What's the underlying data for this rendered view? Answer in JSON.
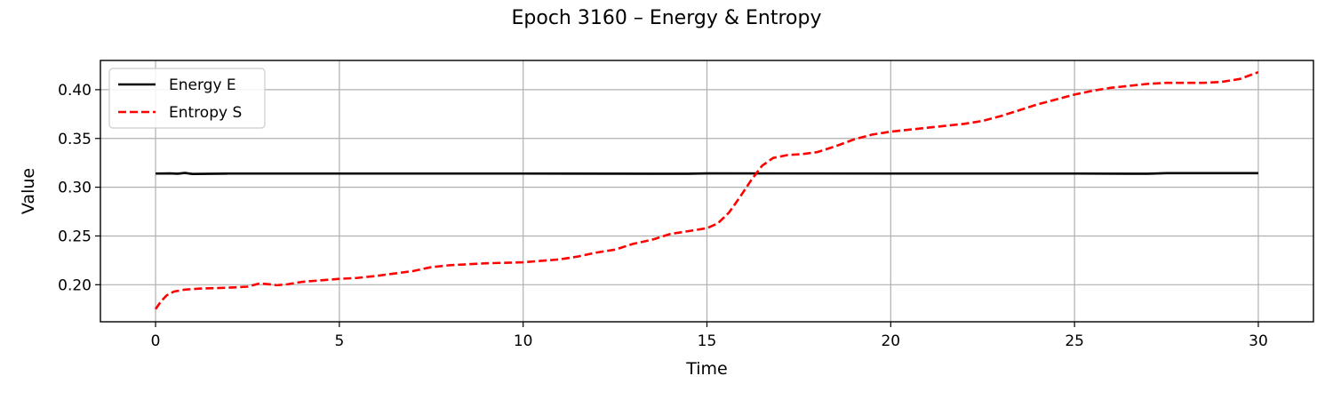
{
  "chart_data": {
    "type": "line",
    "title": "Epoch 3160 – Energy & Entropy",
    "xlabel": "Time",
    "ylabel": "Value",
    "xlim": [
      -1.5,
      31.5
    ],
    "ylim": [
      0.162,
      0.43
    ],
    "xticks": [
      0,
      5,
      10,
      15,
      20,
      25,
      30
    ],
    "yticks": [
      0.2,
      0.25,
      0.3,
      0.35,
      0.4
    ],
    "xtick_labels": [
      "0",
      "5",
      "10",
      "15",
      "20",
      "25",
      "30"
    ],
    "ytick_labels": [
      "0.20",
      "0.25",
      "0.30",
      "0.35",
      "0.40"
    ],
    "grid": true,
    "legend_position": "upper-left",
    "series": [
      {
        "name": "Energy E",
        "color": "#000000",
        "style": "solid",
        "points": [
          [
            0,
            0.314
          ],
          [
            0.4,
            0.3142
          ],
          [
            0.6,
            0.3138
          ],
          [
            0.8,
            0.3146
          ],
          [
            1.0,
            0.3136
          ],
          [
            2,
            0.314
          ],
          [
            5,
            0.314
          ],
          [
            10,
            0.314
          ],
          [
            13.5,
            0.3138
          ],
          [
            14.5,
            0.3138
          ],
          [
            15,
            0.3142
          ],
          [
            20,
            0.314
          ],
          [
            25,
            0.314
          ],
          [
            27,
            0.3138
          ],
          [
            27.5,
            0.3144
          ],
          [
            30,
            0.3144
          ]
        ]
      },
      {
        "name": "Entropy S",
        "color": "#ff0000",
        "style": "dashed",
        "points": [
          [
            0,
            0.175
          ],
          [
            0.15,
            0.183
          ],
          [
            0.3,
            0.189
          ],
          [
            0.5,
            0.193
          ],
          [
            0.8,
            0.195
          ],
          [
            1.2,
            0.196
          ],
          [
            2,
            0.197
          ],
          [
            2.5,
            0.198
          ],
          [
            2.8,
            0.201
          ],
          [
            3,
            0.2008
          ],
          [
            3.3,
            0.1995
          ],
          [
            3.6,
            0.2005
          ],
          [
            4,
            0.203
          ],
          [
            5,
            0.206
          ],
          [
            5.5,
            0.207
          ],
          [
            6,
            0.209
          ],
          [
            7,
            0.214
          ],
          [
            7.5,
            0.218
          ],
          [
            8,
            0.22
          ],
          [
            9,
            0.222
          ],
          [
            10,
            0.223
          ],
          [
            11,
            0.226
          ],
          [
            11.5,
            0.229
          ],
          [
            12,
            0.233
          ],
          [
            12.5,
            0.236
          ],
          [
            13,
            0.242
          ],
          [
            13.5,
            0.246
          ],
          [
            14,
            0.252
          ],
          [
            14.5,
            0.255
          ],
          [
            15,
            0.258
          ],
          [
            15.3,
            0.263
          ],
          [
            15.6,
            0.274
          ],
          [
            15.9,
            0.29
          ],
          [
            16.2,
            0.307
          ],
          [
            16.5,
            0.322
          ],
          [
            16.8,
            0.33
          ],
          [
            17.2,
            0.333
          ],
          [
            17.6,
            0.334
          ],
          [
            18,
            0.336
          ],
          [
            18.5,
            0.342
          ],
          [
            19,
            0.349
          ],
          [
            19.5,
            0.354
          ],
          [
            20,
            0.357
          ],
          [
            21,
            0.361
          ],
          [
            22,
            0.365
          ],
          [
            22.5,
            0.368
          ],
          [
            23,
            0.373
          ],
          [
            23.5,
            0.379
          ],
          [
            24,
            0.385
          ],
          [
            24.5,
            0.39
          ],
          [
            25,
            0.395
          ],
          [
            25.5,
            0.399
          ],
          [
            26,
            0.402
          ],
          [
            26.5,
            0.404
          ],
          [
            27,
            0.406
          ],
          [
            27.5,
            0.407
          ],
          [
            28,
            0.407
          ],
          [
            28.5,
            0.407
          ],
          [
            29,
            0.408
          ],
          [
            29.5,
            0.411
          ],
          [
            30,
            0.418
          ]
        ]
      }
    ]
  }
}
